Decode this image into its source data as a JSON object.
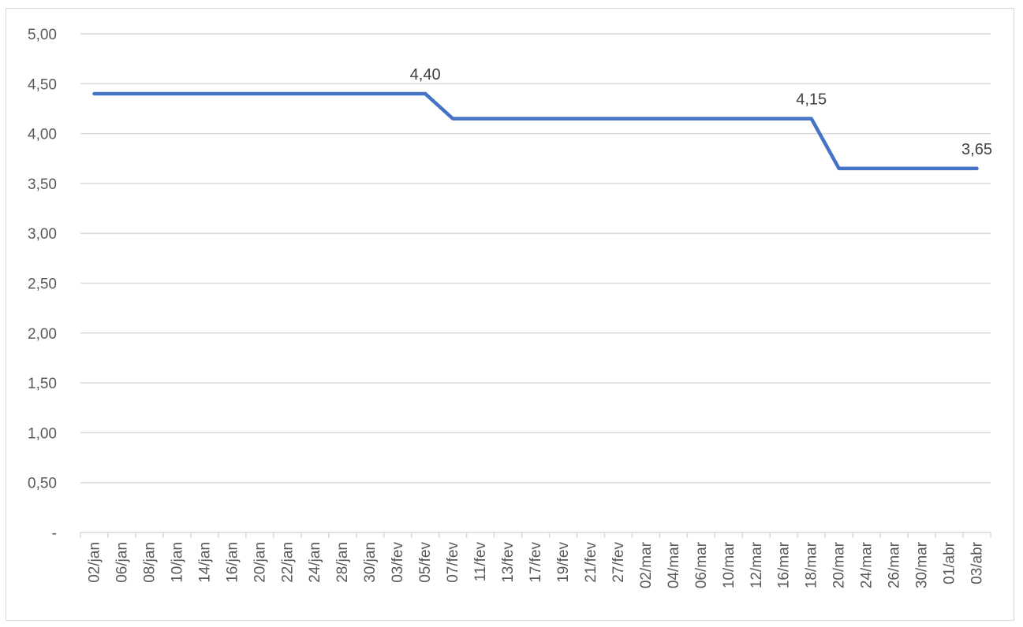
{
  "chart_data": {
    "type": "line",
    "title": "",
    "xlabel": "",
    "ylabel": "",
    "ylim": [
      0,
      5
    ],
    "y_ticks": [
      {
        "value": 0,
        "label": "-"
      },
      {
        "value": 0.5,
        "label": "0,50"
      },
      {
        "value": 1.0,
        "label": "1,00"
      },
      {
        "value": 1.5,
        "label": "1,50"
      },
      {
        "value": 2.0,
        "label": "2,00"
      },
      {
        "value": 2.5,
        "label": "2,50"
      },
      {
        "value": 3.0,
        "label": "3,00"
      },
      {
        "value": 3.5,
        "label": "3,50"
      },
      {
        "value": 4.0,
        "label": "4,00"
      },
      {
        "value": 4.5,
        "label": "4,50"
      },
      {
        "value": 5.0,
        "label": "5,00"
      }
    ],
    "grid": "horizontal",
    "legend": "none",
    "series_color": "#4472C4",
    "categories": [
      "02/jan",
      "06/jan",
      "08/jan",
      "10/jan",
      "14/jan",
      "16/jan",
      "20/jan",
      "22/jan",
      "24/jan",
      "28/jan",
      "30/jan",
      "03/fev",
      "05/fev",
      "07/fev",
      "11/fev",
      "13/fev",
      "17/fev",
      "19/fev",
      "21/fev",
      "27/fev",
      "02/mar",
      "04/mar",
      "06/mar",
      "10/mar",
      "12/mar",
      "16/mar",
      "18/mar",
      "20/mar",
      "24/mar",
      "26/mar",
      "30/mar",
      "01/abr",
      "03/abr"
    ],
    "series": [
      {
        "values": [
          4.4,
          4.4,
          4.4,
          4.4,
          4.4,
          4.4,
          4.4,
          4.4,
          4.4,
          4.4,
          4.4,
          4.4,
          4.4,
          4.15,
          4.15,
          4.15,
          4.15,
          4.15,
          4.15,
          4.15,
          4.15,
          4.15,
          4.15,
          4.15,
          4.15,
          4.15,
          4.15,
          3.65,
          3.65,
          3.65,
          3.65,
          3.65,
          3.65
        ]
      }
    ],
    "data_labels": [
      {
        "index": 12,
        "text": "4,40"
      },
      {
        "index": 26,
        "text": "4,15"
      },
      {
        "index": 32,
        "text": "3,65"
      }
    ]
  }
}
